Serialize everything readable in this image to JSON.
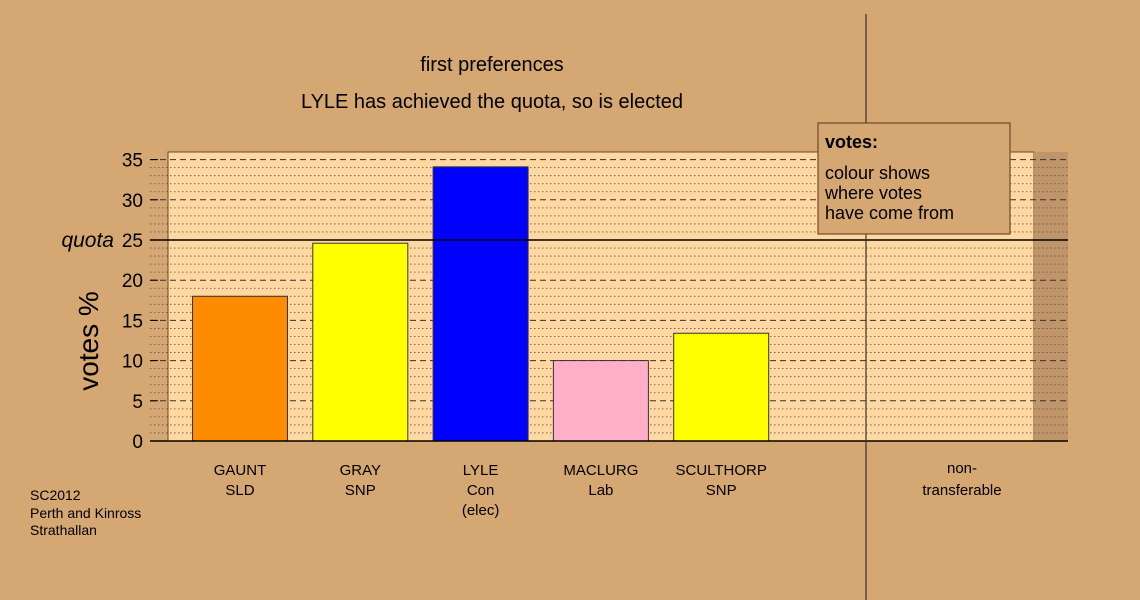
{
  "chart_data": {
    "type": "bar",
    "title": "first preferences",
    "subtitle": "LYLE has achieved the quota, so is elected",
    "ylabel": "votes %",
    "ylim": [
      0,
      35
    ],
    "yticks": [
      "0",
      "5",
      "10",
      "15",
      "20",
      "25",
      "30",
      "35"
    ],
    "quota": {
      "label": "quota",
      "value": 25
    },
    "categories": [
      {
        "lines": [
          "GAUNT",
          "SLD"
        ],
        "value": 18.0,
        "color": "#FF8C00"
      },
      {
        "lines": [
          "GRAY",
          "SNP"
        ],
        "value": 24.6,
        "color": "#FFFF00"
      },
      {
        "lines": [
          "LYLE",
          "Con",
          "(elec)"
        ],
        "value": 34.1,
        "color": "#0000FF"
      },
      {
        "lines": [
          "MACLURG",
          "Lab"
        ],
        "value": 10.0,
        "color": "#FFB0C8"
      },
      {
        "lines": [
          "SCULTHORP",
          "SNP"
        ],
        "value": 13.4,
        "color": "#FFFF00"
      }
    ],
    "nontransferable": {
      "lines": [
        "non-",
        "transferable"
      ],
      "value": 0
    },
    "grid": true,
    "legend": {
      "title": "votes:",
      "lines": [
        "colour shows",
        "where votes",
        "have come from"
      ],
      "position": "top-right"
    }
  },
  "footer": [
    "SC2012",
    "Perth and Kinross",
    "Strathallan"
  ],
  "colors": {
    "background": "#D4A773",
    "plot_bg": "#FFD7A0"
  }
}
